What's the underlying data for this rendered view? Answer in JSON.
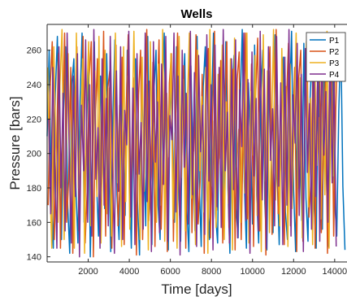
{
  "chart_data": {
    "type": "line",
    "title": "Wells",
    "xlabel": "Time [days]",
    "ylabel": "Pressure [bars]",
    "xlim": [
      0,
      14600
    ],
    "ylim": [
      137,
      275
    ],
    "xticks": [
      2000,
      4000,
      6000,
      8000,
      10000,
      12000,
      14000
    ],
    "yticks": [
      140,
      160,
      180,
      200,
      220,
      240,
      260
    ],
    "legend_position": "top-right",
    "grid": false,
    "series": [
      {
        "name": "P1",
        "color": "#0072BD",
        "seed": 11,
        "x_start": 0,
        "x_step": 100,
        "values": [
          210,
          260,
          175,
          145,
          235,
          268,
          190,
          150,
          225,
          262,
          170,
          142,
          240,
          255,
          180,
          148,
          230,
          270,
          160,
          205,
          250,
          140,
          195,
          265,
          185,
          152,
          245,
          210,
          168,
          258,
          200,
          143,
          222,
          266,
          176,
          150,
          238,
          212,
          164,
          260,
          190,
          145,
          228,
          255,
          172,
          141,
          248,
          205,
          158,
          268,
          182,
          147,
          236,
          260,
          170,
          150,
          226,
          270,
          188,
          144,
          242,
          215,
          160,
          262,
          178,
          149,
          232,
          258,
          167,
          143,
          251,
          200,
          155,
          268,
          186,
          146,
          239,
          262,
          173,
          150,
          224,
          270,
          165,
          148,
          245,
          208,
          157,
          265,
          180,
          142,
          235,
          257,
          168,
          151,
          229,
          272,
          184,
          145,
          241,
          210,
          159,
          263,
          176,
          148,
          233,
          260,
          171,
          144,
          248,
          204,
          154,
          269,
          188,
          147,
          237,
          256,
          166,
          150,
          227,
          271,
          179,
          143,
          244,
          212,
          161,
          264,
          174,
          149,
          231,
          259,
          169,
          145,
          250,
          206,
          156,
          267,
          185,
          146,
          240,
          261,
          172,
          152,
          225,
          268,
          181,
          144
        ]
      },
      {
        "name": "P2",
        "color": "#D95319",
        "seed": 23,
        "x_start": 50,
        "x_step": 100,
        "values": [
          170,
          240,
          265,
          150,
          195,
          258,
          145,
          215,
          270,
          160,
          185,
          250,
          142,
          230,
          262,
          155,
          205,
          268,
          148,
          178,
          245,
          265,
          140,
          220,
          255,
          163,
          190,
          271,
          152,
          238,
          248,
          145,
          210,
          263,
          158,
          182,
          256,
          147,
          226,
          269,
          166,
          198,
          244,
          141,
          234,
          260,
          150,
          214,
          272,
          161,
          187,
          253,
          146,
          229,
          266,
          156,
          202,
          247,
          143,
          241,
          258,
          149,
          218,
          270,
          164,
          193,
          251,
          145,
          232,
          263,
          154,
          208,
          269,
          159,
          184,
          246,
          142,
          236,
          261,
          151,
          221,
          271,
          167,
          196,
          254,
          148,
          227,
          265,
          157,
          211,
          249,
          144,
          243,
          259,
          150,
          216,
          270,
          162,
          189,
          252,
          146,
          233,
          267,
          155,
          205,
          248,
          141,
          239,
          262,
          153,
          223,
          272,
          165,
          191,
          255,
          147,
          228,
          264,
          158,
          209,
          250,
          143,
          244,
          260,
          149,
          219,
          269,
          163,
          186,
          253,
          145,
          235,
          266,
          154,
          203,
          246,
          142,
          240,
          261,
          152,
          224,
          270
        ]
      },
      {
        "name": "P3",
        "color": "#EDB120",
        "seed": 37,
        "x_start": 25,
        "x_step": 100,
        "values": [
          250,
          185,
          145,
          262,
          205,
          160,
          240,
          272,
          150,
          195,
          258,
          168,
          225,
          145,
          270,
          180,
          210,
          255,
          142,
          232,
          265,
          158,
          190,
          248,
          175,
          268,
          148,
          215,
          260,
          165,
          238,
          152,
          200,
          270,
          183,
          228,
          146,
          262,
          172,
          245,
          156,
          208,
          271,
          188,
          222,
          150,
          256,
          178,
          240,
          144,
          265,
          195,
          218,
          160,
          252,
          170,
          272,
          149,
          235,
          198,
          258,
          162,
          212,
          145,
          268,
          186,
          243,
          155,
          226,
          270,
          174,
          201,
          147,
          260,
          190,
          233,
          166,
          250,
          142,
          272,
          181,
          219,
          157,
          246,
          197,
          263,
          150,
          230,
          171,
          255,
          144,
          267,
          192,
          214,
          160,
          241,
          177,
          270,
          148,
          236,
          199,
          257,
          164,
          224,
          143,
          269,
          184,
          248,
          154,
          210,
          272,
          173,
          228,
          158,
          261,
          189,
          239,
          146,
          252,
          168,
          216,
          270,
          180,
          244,
          151,
          204,
          265,
          169,
          232,
          147,
          258,
          193,
          221,
          162,
          247,
          176,
          271,
          145,
          237,
          187,
          254
        ]
      },
      {
        "name": "P4",
        "color": "#7E2F8E",
        "seed": 53,
        "x_start": 75,
        "x_step": 100,
        "values": [
          220,
          165,
          250,
          195,
          145,
          262,
          180,
          235,
          155,
          270,
          200,
          148,
          245,
          175,
          258,
          140,
          228,
          190,
          266,
          160,
          240,
          152,
          272,
          185,
          215,
          145,
          255,
          170,
          232,
          158,
          268,
          198,
          142,
          248,
          178,
          262,
          150,
          225,
          205,
          271,
          163,
          238,
          147,
          258,
          188,
          218,
          156,
          270,
          172,
          242,
          143,
          265,
          195,
          230,
          154,
          252,
          182,
          268,
          149,
          222,
          208,
          270,
          166,
          245,
          141,
          260,
          192,
          235,
          159,
          271,
          176,
          247,
          146,
          257,
          201,
          228,
          153,
          269,
          184,
          240,
          144,
          263,
          169,
          250,
          157,
          272,
          190,
          224,
          148,
          255,
          179,
          266,
          151,
          237,
          204,
          270,
          161,
          243,
          142,
          259,
          187,
          232,
          155,
          271,
          173,
          249,
          145,
          262,
          196,
          226,
          158,
          268,
          181,
          241,
          147,
          256,
          170,
          272,
          152,
          234,
          206,
          264,
          164,
          246,
          143,
          261,
          189,
          229,
          156,
          270,
          175,
          252,
          149,
          263,
          199,
          236,
          160,
          269,
          183,
          244,
          146
        ]
      }
    ]
  }
}
